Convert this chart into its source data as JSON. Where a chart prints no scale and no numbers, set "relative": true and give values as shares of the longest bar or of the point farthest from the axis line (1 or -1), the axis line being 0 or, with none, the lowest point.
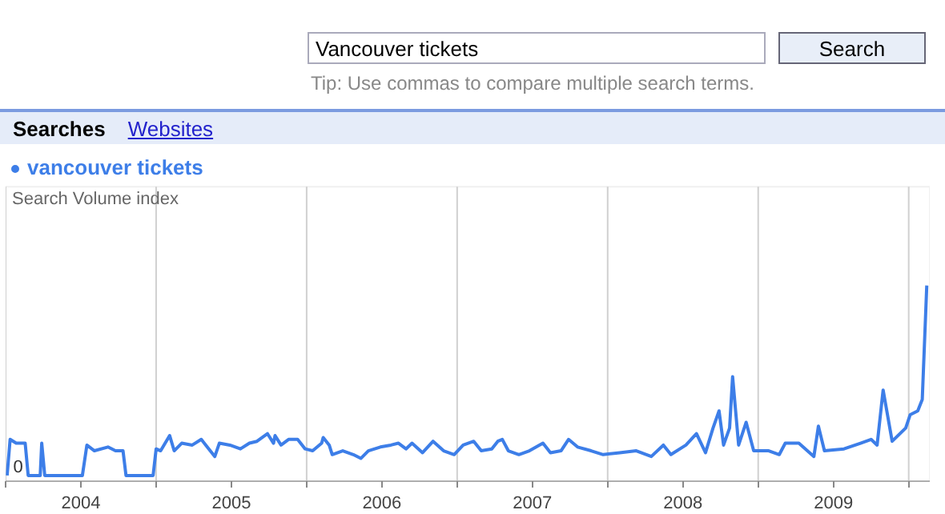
{
  "chart_data": {
    "type": "line",
    "relative": true,
    "ylabel": "Search Volume index",
    "annotations": [
      "Vancouver tickets",
      "Search",
      "Tip: Use commas to compare multiple search terms.",
      "Searches",
      "Websites",
      {
        "text": "0",
        "x": 2004.05,
        "y": 0
      }
    ],
    "xlim": [
      2004.0,
      2010.14
    ],
    "xticks": [
      {
        "value": 2004,
        "label": null
      },
      {
        "value": 2004.5,
        "label": "2004"
      },
      {
        "value": 2005,
        "label": null
      },
      {
        "value": 2005.5,
        "label": "2005"
      },
      {
        "value": 2006,
        "label": null
      },
      {
        "value": 2006.5,
        "label": "2006"
      },
      {
        "value": 2007,
        "label": null
      },
      {
        "value": 2007.5,
        "label": "2007"
      },
      {
        "value": 2008,
        "label": null
      },
      {
        "value": 2008.5,
        "label": "2008"
      },
      {
        "value": 2009,
        "label": null
      },
      {
        "value": 2009.5,
        "label": "2009"
      },
      {
        "value": 2010,
        "label": null
      }
    ],
    "grid": "x",
    "legend": "top left",
    "marker": "none",
    "line_style": "solid",
    "series": [
      {
        "name": "vancouver tickets",
        "color": "#3d7ee8",
        "x": [
          2004.01,
          2004.03,
          2004.07,
          2004.13,
          2004.15,
          2004.23,
          2004.24,
          2004.26,
          2004.51,
          2004.54,
          2004.59,
          2004.68,
          2004.73,
          2004.78,
          2004.8,
          2004.98,
          2005.0,
          2005.03,
          2005.09,
          2005.12,
          2005.17,
          2005.24,
          2005.3,
          2005.35,
          2005.39,
          2005.42,
          2005.49,
          2005.56,
          2005.62,
          2005.67,
          2005.74,
          2005.78,
          2005.79,
          2005.83,
          2005.88,
          2005.94,
          2005.99,
          2006.04,
          2006.1,
          2006.11,
          2006.15,
          2006.17,
          2006.24,
          2006.31,
          2006.36,
          2006.41,
          2006.49,
          2006.56,
          2006.61,
          2006.66,
          2006.7,
          2006.77,
          2006.84,
          2006.91,
          2006.98,
          2007.04,
          2007.11,
          2007.16,
          2007.23,
          2007.27,
          2007.3,
          2007.34,
          2007.41,
          2007.48,
          2007.57,
          2007.62,
          2007.69,
          2007.74,
          2007.8,
          2007.89,
          2007.97,
          2008.08,
          2008.19,
          2008.29,
          2008.37,
          2008.42,
          2008.52,
          2008.59,
          2008.65,
          2008.7,
          2008.74,
          2008.77,
          2008.81,
          2008.83,
          2008.87,
          2008.92,
          2008.97,
          2009.07,
          2009.14,
          2009.18,
          2009.27,
          2009.37,
          2009.4,
          2009.44,
          2009.57,
          2009.68,
          2009.75,
          2009.79,
          2009.83,
          2009.89,
          2009.98,
          2010.01,
          2010.06,
          2010.09,
          2010.12
        ],
        "values": [
          0,
          0.19,
          0.17,
          0.17,
          0,
          0,
          0.17,
          0,
          0,
          0.16,
          0.13,
          0.15,
          0.13,
          0.13,
          0,
          0,
          0.14,
          0.13,
          0.21,
          0.13,
          0.17,
          0.16,
          0.19,
          0.14,
          0.1,
          0.17,
          0.16,
          0.14,
          0.17,
          0.18,
          0.22,
          0.17,
          0.21,
          0.16,
          0.19,
          0.19,
          0.14,
          0.13,
          0.17,
          0.2,
          0.16,
          0.11,
          0.13,
          0.11,
          0.09,
          0.13,
          0.15,
          0.16,
          0.17,
          0.14,
          0.17,
          0.12,
          0.18,
          0.13,
          0.11,
          0.16,
          0.18,
          0.13,
          0.14,
          0.18,
          0.19,
          0.13,
          0.11,
          0.13,
          0.17,
          0.12,
          0.13,
          0.19,
          0.15,
          0.13,
          0.11,
          0.12,
          0.13,
          0.1,
          0.16,
          0.11,
          0.16,
          0.22,
          0.12,
          0.25,
          0.34,
          0.16,
          0.25,
          0.52,
          0.16,
          0.28,
          0.13,
          0.13,
          0.11,
          0.17,
          0.17,
          0.1,
          0.26,
          0.13,
          0.14,
          0.17,
          0.19,
          0.16,
          0.45,
          0.18,
          0.25,
          0.32,
          0.34,
          0.4,
          1.0
        ]
      }
    ]
  }
}
